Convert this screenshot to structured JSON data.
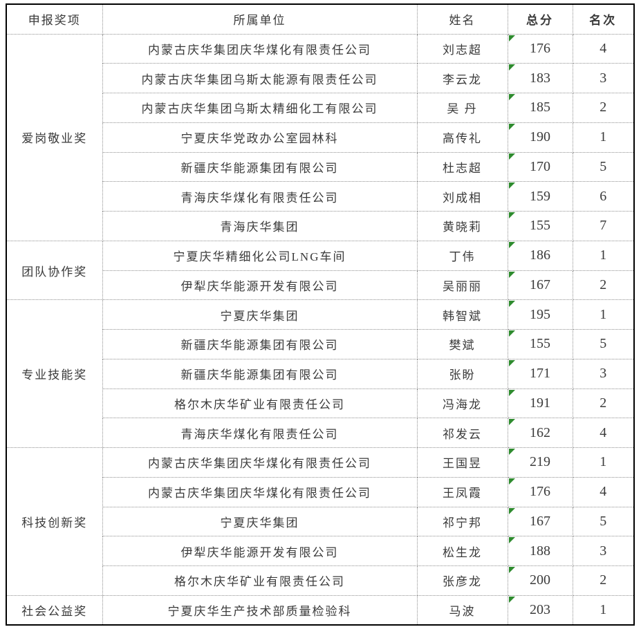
{
  "colors": {
    "indicator_green": "#2e8b2e",
    "grid_line": "#8f8f8f",
    "outer_border": "#000000",
    "text": "#3a3a3a"
  },
  "table": {
    "headers": [
      "申报奖项",
      "所属单位",
      "姓名",
      "总分",
      "名次"
    ],
    "groups": [
      {
        "award": "爱岗敬业奖",
        "rows": [
          {
            "unit": "内蒙古庆华集团庆华煤化有限责任公司",
            "name": "刘志超",
            "score": "176",
            "rank": "4"
          },
          {
            "unit": "内蒙古庆华集团乌斯太能源有限责任公司",
            "name": "李云龙",
            "score": "183",
            "rank": "3"
          },
          {
            "unit": "内蒙古庆华集团乌斯太精细化工有限公司",
            "name": "吴 丹",
            "score": "185",
            "rank": "2"
          },
          {
            "unit": "宁夏庆华党政办公室园林科",
            "name": "高传礼",
            "score": "190",
            "rank": "1"
          },
          {
            "unit": "新疆庆华能源集团有限公司",
            "name": "杜志超",
            "score": "170",
            "rank": "5"
          },
          {
            "unit": "青海庆华煤化有限责任公司",
            "name": "刘成相",
            "score": "159",
            "rank": "6"
          },
          {
            "unit": "青海庆华集团",
            "name": "黄晓莉",
            "score": "155",
            "rank": "7"
          }
        ]
      },
      {
        "award": "团队协作奖",
        "rows": [
          {
            "unit": "宁夏庆华精细化公司LNG车间",
            "name": "丁伟",
            "score": "186",
            "rank": "1"
          },
          {
            "unit": "伊犁庆华能源开发有限公司",
            "name": "吴丽丽",
            "score": "167",
            "rank": "2"
          }
        ]
      },
      {
        "award": "专业技能奖",
        "rows": [
          {
            "unit": "宁夏庆华集团",
            "name": "韩智斌",
            "score": "195",
            "rank": "1"
          },
          {
            "unit": "新疆庆华能源集团有限公司",
            "name": "樊斌",
            "score": "155",
            "rank": "5"
          },
          {
            "unit": "新疆庆华能源集团有限公司",
            "name": "张盼",
            "score": "171",
            "rank": "3"
          },
          {
            "unit": "格尔木庆华矿业有限责任公司",
            "name": "冯海龙",
            "score": "191",
            "rank": "2"
          },
          {
            "unit": "青海庆华煤化有限责任公司",
            "name": "祁发云",
            "score": "162",
            "rank": "4"
          }
        ]
      },
      {
        "award": "科技创新奖",
        "rows": [
          {
            "unit": "内蒙古庆华集团庆华煤化有限责任公司",
            "name": "王国昱",
            "score": "219",
            "rank": "1"
          },
          {
            "unit": "内蒙古庆华集团庆华煤化有限责任公司",
            "name": "王凤霞",
            "score": "176",
            "rank": "4"
          },
          {
            "unit": "宁夏庆华集团",
            "name": "祁宁邦",
            "score": "167",
            "rank": "5"
          },
          {
            "unit": "伊犁庆华能源开发有限公司",
            "name": "松生龙",
            "score": "188",
            "rank": "3"
          },
          {
            "unit": "格尔木庆华矿业有限责任公司",
            "name": "张彦龙",
            "score": "200",
            "rank": "2"
          }
        ]
      },
      {
        "award": "社会公益奖",
        "rows": [
          {
            "unit": "宁夏庆华生产技术部质量检验科",
            "name": "马波",
            "score": "203",
            "rank": "1"
          }
        ]
      }
    ]
  }
}
